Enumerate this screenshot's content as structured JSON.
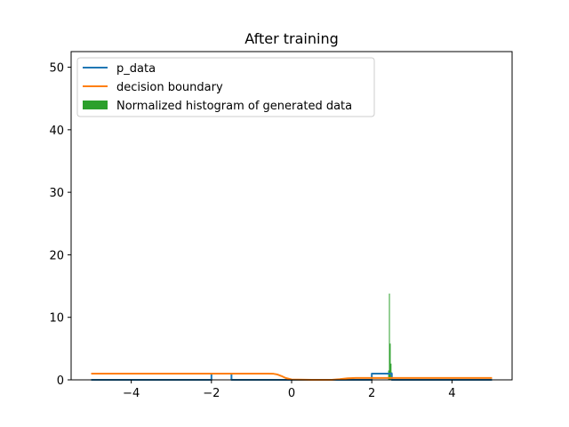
{
  "chart_data": {
    "type": "line",
    "title": "After training",
    "xlabel": "",
    "ylabel": "",
    "xlim": [
      -5.5,
      5.5
    ],
    "ylim": [
      0,
      52.5
    ],
    "xticks": [
      -4,
      -2,
      0,
      2,
      4
    ],
    "xtick_labels": [
      "−4",
      "−2",
      "0",
      "2",
      "4"
    ],
    "yticks": [
      0,
      10,
      20,
      30,
      40,
      50
    ],
    "ytick_labels": [
      "0",
      "10",
      "20",
      "30",
      "40",
      "50"
    ],
    "grid": false,
    "legend_position": "upper-left",
    "series": [
      {
        "name": "p_data",
        "kind": "line",
        "color": "#1f77b4",
        "x": [
          -5,
          -2,
          -2,
          -1.5,
          -1.5,
          2,
          2,
          2.5,
          2.5,
          5
        ],
        "y": [
          0,
          0,
          1,
          1,
          0,
          0,
          1,
          1,
          0,
          0
        ]
      },
      {
        "name": "decision boundary",
        "kind": "line",
        "color": "#ff7f0e",
        "x": [
          -5,
          -0.6,
          -0.45,
          -0.35,
          -0.25,
          -0.15,
          0,
          0.5,
          1.0,
          1.2,
          1.4,
          1.6,
          5
        ],
        "y": [
          1.0,
          1.0,
          0.97,
          0.85,
          0.6,
          0.3,
          0.05,
          0.0,
          0.0,
          0.1,
          0.25,
          0.3,
          0.3
        ]
      },
      {
        "name": "Normalized histogram of generated data",
        "kind": "bar",
        "color": "#2ca02c",
        "x": [
          2.42,
          2.44,
          2.46,
          2.48,
          2.5
        ],
        "y": [
          1.5,
          13.8,
          5.8,
          2.6,
          1.2
        ]
      }
    ]
  }
}
